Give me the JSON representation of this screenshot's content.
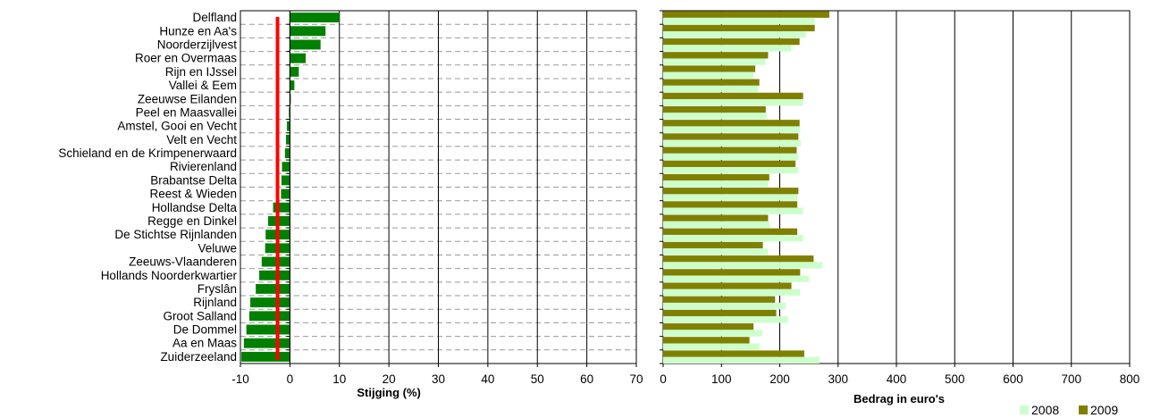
{
  "chart_data": [
    {
      "type": "bar",
      "orientation": "horizontal",
      "categories": [
        "Delfland",
        "Hunze en Aa's",
        "Noorderzijlvest",
        "Roer en Overmaas",
        "Rijn en IJssel",
        "Vallei & Eem",
        "Zeeuwse Eilanden",
        "Peel en Maasvallei",
        "Amstel, Gooi en Vecht",
        "Velt en Vecht",
        "Schieland en de Krimpenerwaard",
        "Rivierenland",
        "Brabantse Delta",
        "Reest & Wieden",
        "Hollandse Delta",
        "Regge en Dinkel",
        "De Stichtse Rijnlanden",
        "Veluwe",
        "Zeeuws-Vlaanderen",
        "Hollands Noorderkwartier",
        "Fryslân",
        "Rijnland",
        "Groot Salland",
        "De Dommel",
        "Aa en Maas",
        "Zuiderzeeland"
      ],
      "values": [
        10.0,
        7.2,
        6.2,
        3.2,
        1.8,
        0.9,
        0.2,
        -0.2,
        -0.6,
        -0.8,
        -1.0,
        -1.6,
        -1.7,
        -1.8,
        -3.4,
        -4.4,
        -4.9,
        -5.0,
        -5.7,
        -6.2,
        -6.9,
        -8.0,
        -8.2,
        -8.8,
        -9.3,
        -9.8
      ],
      "xlabel": "Stijging (%)",
      "xlim": [
        -10,
        70
      ],
      "xticks": [
        -10,
        0,
        10,
        20,
        30,
        40,
        50,
        60,
        70
      ],
      "reference_line_x": -2.5,
      "colors": {
        "bar": "#008000",
        "reference_line": "#ff0000"
      }
    },
    {
      "type": "bar",
      "orientation": "horizontal",
      "categories": [
        "Delfland",
        "Hunze en Aa's",
        "Noorderzijlvest",
        "Roer en Overmaas",
        "Rijn en IJssel",
        "Vallei & Eem",
        "Zeeuwse Eilanden",
        "Peel en Maasvallei",
        "Amstel, Gooi en Vecht",
        "Velt en Vecht",
        "Schieland en de Krimpenerwaard",
        "Rivierenland",
        "Brabantse Delta",
        "Reest & Wieden",
        "Hollandse Delta",
        "Regge en Dinkel",
        "De Stichtse Rijnlanden",
        "Veluwe",
        "Zeeuws-Vlaanderen",
        "Hollands Noorderkwartier",
        "Fryslân",
        "Rijnland",
        "Groot Salland",
        "De Dommel",
        "Aa en Maas",
        "Zuiderzeeland"
      ],
      "series": [
        {
          "name": "2009",
          "color": "#808000",
          "values": [
            285,
            260,
            234,
            180,
            158,
            165,
            240,
            176,
            234,
            232,
            229,
            227,
            182,
            232,
            230,
            180,
            230,
            171,
            258,
            235,
            220,
            192,
            194,
            155,
            148,
            242
          ]
        },
        {
          "name": "2008",
          "color": "#ccffcc",
          "values": [
            260,
            245,
            220,
            175,
            155,
            163,
            240,
            178,
            235,
            236,
            232,
            232,
            180,
            230,
            240,
            183,
            240,
            180,
            273,
            250,
            235,
            210,
            214,
            170,
            165,
            268
          ]
        }
      ],
      "xlabel": "Bedrag in euro's",
      "xlim": [
        0,
        800
      ],
      "xticks": [
        0,
        100,
        200,
        300,
        400,
        500,
        600,
        700,
        800
      ],
      "legend_position": "bottom-right",
      "legend": [
        "2008",
        "2009"
      ]
    }
  ]
}
